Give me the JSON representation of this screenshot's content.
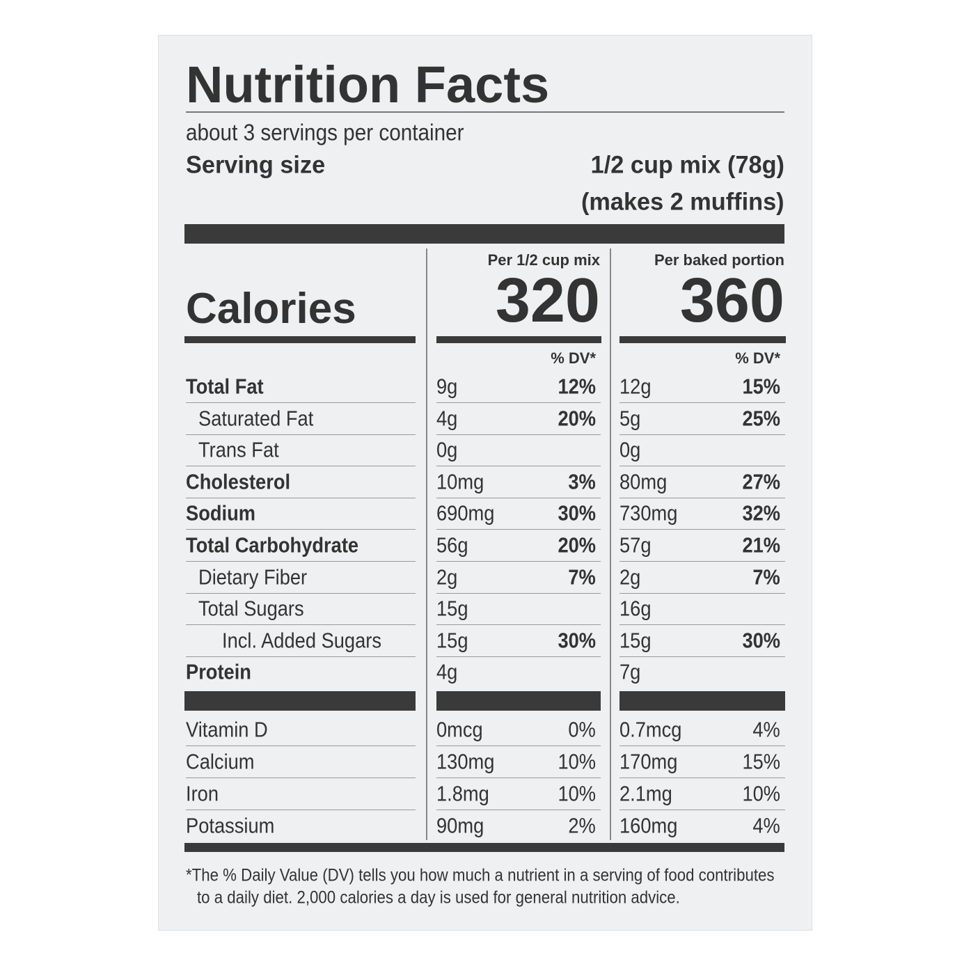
{
  "title": "Nutrition Facts",
  "servings": "about 3 servings per container",
  "serving_size_label": "Serving size",
  "serving_size_value": "1/2 cup mix (78g)",
  "serving_size_note": "(makes 2 muffins)",
  "calories_label": "Calories",
  "columns": [
    {
      "header": "Per 1/2 cup mix",
      "calories": "320",
      "dv_header": "% DV*"
    },
    {
      "header": "Per baked portion",
      "calories": "360",
      "dv_header": "% DV*"
    }
  ],
  "nutrients": [
    {
      "name": "Total Fat",
      "style": "bold",
      "values": [
        [
          "9g",
          "12%"
        ],
        [
          "12g",
          "15%"
        ]
      ]
    },
    {
      "name": "Saturated Fat",
      "style": "indent",
      "values": [
        [
          "4g",
          "20%"
        ],
        [
          "5g",
          "25%"
        ]
      ]
    },
    {
      "name": "Trans Fat",
      "style": "indent",
      "values": [
        [
          "0g",
          null
        ],
        [
          "0g",
          null
        ]
      ]
    },
    {
      "name": "Cholesterol",
      "style": "bold",
      "values": [
        [
          "10mg",
          "3%"
        ],
        [
          "80mg",
          "27%"
        ]
      ]
    },
    {
      "name": "Sodium",
      "style": "bold",
      "values": [
        [
          "690mg",
          "30%"
        ],
        [
          "730mg",
          "32%"
        ]
      ]
    },
    {
      "name": "Total Carbohydrate",
      "style": "bold",
      "values": [
        [
          "56g",
          "20%"
        ],
        [
          "57g",
          "21%"
        ]
      ]
    },
    {
      "name": "Dietary Fiber",
      "style": "indent",
      "values": [
        [
          "2g",
          "7%"
        ],
        [
          "2g",
          "7%"
        ]
      ]
    },
    {
      "name": "Total Sugars",
      "style": "indent",
      "values": [
        [
          "15g",
          null
        ],
        [
          "16g",
          null
        ]
      ]
    },
    {
      "name": "Incl. Added Sugars",
      "style": "indent2",
      "values": [
        [
          "15g",
          "30%"
        ],
        [
          "15g",
          "30%"
        ]
      ]
    },
    {
      "name": "Protein",
      "style": "bold",
      "values": [
        [
          "4g",
          null
        ],
        [
          "7g",
          null
        ]
      ]
    }
  ],
  "vitamins": [
    {
      "name": "Vitamin D",
      "values": [
        [
          "0mcg",
          "0%"
        ],
        [
          "0.7mcg",
          "4%"
        ]
      ]
    },
    {
      "name": "Calcium",
      "values": [
        [
          "130mg",
          "10%"
        ],
        [
          "170mg",
          "15%"
        ]
      ]
    },
    {
      "name": "Iron",
      "values": [
        [
          "1.8mg",
          "10%"
        ],
        [
          "2.1mg",
          "10%"
        ]
      ]
    },
    {
      "name": "Potassium",
      "values": [
        [
          "90mg",
          "2%"
        ],
        [
          "160mg",
          "4%"
        ]
      ]
    }
  ],
  "footnote": [
    "*The % Daily Value (DV) tells you how much a nutrient in a serving of food contributes",
    "to a daily diet. 2,000 calories a day is used for general nutrition advice."
  ]
}
